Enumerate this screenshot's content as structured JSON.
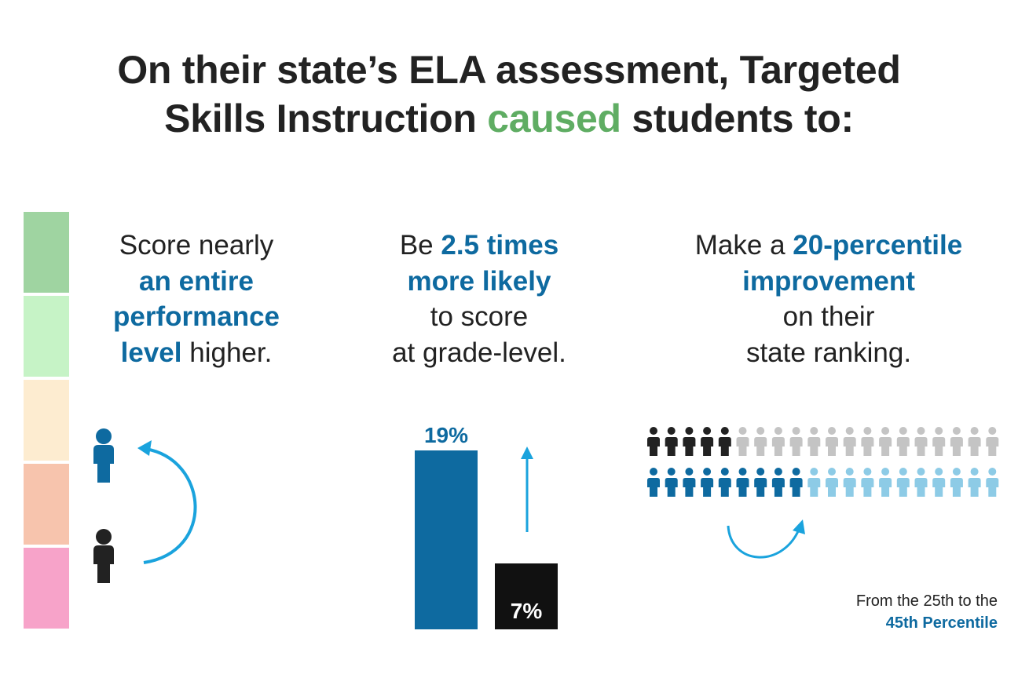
{
  "title": {
    "line1": "On their state’s ELA assessment, Targeted",
    "line2_before": "Skills Instruction ",
    "line2_highlight": "caused",
    "line2_after": " students to:"
  },
  "colors": {
    "title_highlight": "#5fad63",
    "accent_blue": "#0e6aa0",
    "arrow_blue": "#1aa3dd",
    "dark": "#222222",
    "light_gray_person": "#c4c4c4",
    "light_blue_person": "#8dcbe6",
    "performance_levels": [
      "#9fd4a1",
      "#c6f3c6",
      "#fdecd0",
      "#f7c4ad",
      "#f7a3c9"
    ]
  },
  "col1": {
    "line1": "Score nearly",
    "bold1": "an entire",
    "bold2": "performance",
    "bold3": "level",
    "rest": " higher.",
    "icons": [
      "person-icon-blue",
      "person-icon-black",
      "curved-arrow-icon"
    ]
  },
  "col2": {
    "line1_before": "Be ",
    "bold1": "2.5 times",
    "bold2": "more likely",
    "line3": "to score",
    "line4": "at grade-level."
  },
  "col3": {
    "line1_before": "Make a ",
    "bold1": "20-percentile",
    "bold2": "improvement",
    "line3": "on their",
    "line4": "state ranking.",
    "grid": {
      "per_row": 20,
      "row1_highlight": 5,
      "row2_highlight": 9
    }
  },
  "chart_data": {
    "type": "bar",
    "categories": [
      "",
      ""
    ],
    "values": [
      19,
      7
    ],
    "labels": [
      "19%",
      "7%"
    ],
    "colors": [
      "#0e6aa0",
      "#111111"
    ],
    "ylim": [
      0,
      20
    ]
  },
  "footnote": {
    "line1": "From the 25th to the",
    "line2": "45th Percentile"
  }
}
